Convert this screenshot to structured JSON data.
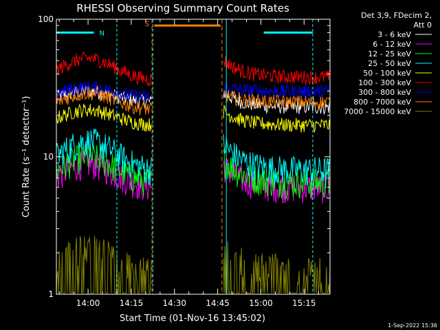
{
  "chart_data": {
    "type": "line",
    "title": "RHESSI Observing Summary Count Rates",
    "xlabel": "Start Time (01-Nov-16 13:45:02)",
    "ylabel": "Count Rate (s⁻¹ detector⁻¹)",
    "yscale": "log",
    "ylim": [
      1,
      100
    ],
    "xlim_minutes": [
      -11,
      84
    ],
    "x_ticks": [
      {
        "label": "14:00",
        "minute": 0
      },
      {
        "label": "14:15",
        "minute": 15
      },
      {
        "label": "14:30",
        "minute": 30
      },
      {
        "label": "14:45",
        "minute": 45
      },
      {
        "label": "15:00",
        "minute": 60
      },
      {
        "label": "15:15",
        "minute": 75
      }
    ],
    "y_ticks": [
      {
        "label": "1",
        "value": 1
      },
      {
        "label": "10",
        "value": 10
      },
      {
        "label": "100",
        "value": 100
      }
    ],
    "legend_header": [
      "Det 3,9, FDecim 2,",
      "Att 0"
    ],
    "legend_position": "top-right",
    "grid": false,
    "gaps_minutes": [
      [
        22,
        47
      ]
    ],
    "series": [
      {
        "name": "3 - 6 keV",
        "color": "#ffffff",
        "values_start": 25,
        "values_peak": 30,
        "values_end": 23,
        "peak_minute": 0
      },
      {
        "name": "6 - 12 keV",
        "color": "#ff00ff",
        "values_start": 6.0,
        "values_peak": 9.0,
        "values_end": 6.0,
        "peak_minute": 0
      },
      {
        "name": "12 - 25 keV",
        "color": "#00ff00",
        "values_start": 6.5,
        "values_peak": 10,
        "values_end": 6.5,
        "peak_minute": 0
      },
      {
        "name": "25 - 50 keV",
        "color": "#00ffff",
        "values_start": 8,
        "values_peak": 13,
        "values_end": 8,
        "peak_minute": 0
      },
      {
        "name": "50 - 100 keV",
        "color": "#ffff00",
        "values_start": 17,
        "values_peak": 22,
        "values_end": 17,
        "peak_minute": 0
      },
      {
        "name": "100 - 300 keV",
        "color": "#ff0000",
        "values_start": 36,
        "values_peak": 52,
        "values_end": 38,
        "peak_minute": 0
      },
      {
        "name": "300 - 800 keV",
        "color": "#0000ff",
        "values_start": 27,
        "values_peak": 32,
        "values_end": 30,
        "peak_minute": 0
      },
      {
        "name": "800 - 7000 keV",
        "color": "#ff8000",
        "values_start": 22,
        "values_peak": 29,
        "values_end": 25,
        "peak_minute": 0
      },
      {
        "name": "7000 - 15000 keV",
        "color": "#808000",
        "values_start": 1.2,
        "values_peak": 1.8,
        "values_end": 1.3,
        "peak_minute": 0
      }
    ],
    "flag_bars": [
      {
        "label": "N",
        "color": "#00ffff",
        "y_value": 80,
        "start_minute": -11,
        "end_minute": 2
      },
      {
        "label": "S",
        "color": "#ff8000",
        "y_value": 90,
        "start_minute": 23,
        "end_minute": 46
      },
      {
        "label": "",
        "color": "#00ffff",
        "y_value": 80,
        "start_minute": 61,
        "end_minute": 78
      }
    ],
    "timestamp": "1-Sep-2022 15:36"
  }
}
